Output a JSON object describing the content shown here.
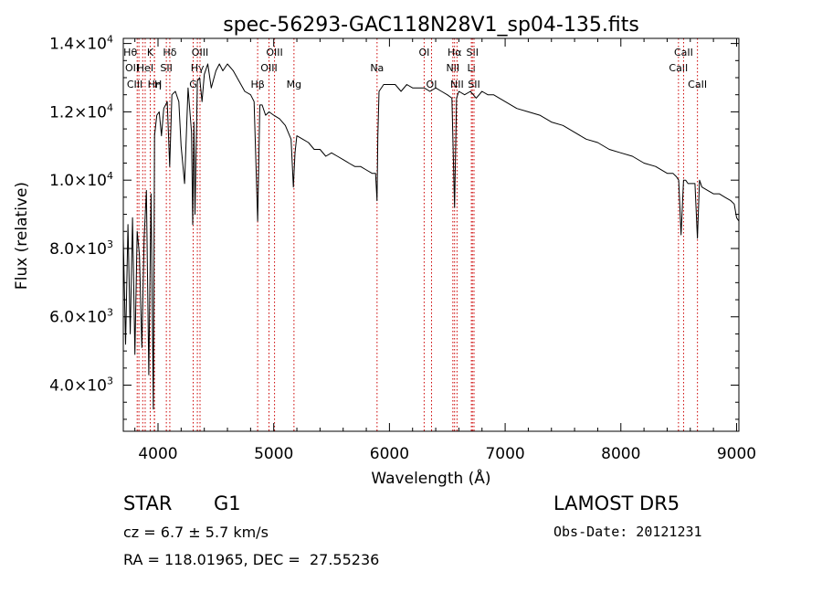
{
  "chart_data": {
    "type": "line",
    "title": "spec-56293-GAC118N28V1_sp04-135.fits",
    "xlabel": "Wavelength (Å)",
    "ylabel": "Flux (relative)",
    "xlim": [
      3700,
      9020
    ],
    "ylim": [
      2650,
      14150
    ],
    "grid": false,
    "x_ticks": [
      {
        "value": 4000,
        "label": "4000"
      },
      {
        "value": 5000,
        "label": "5000"
      },
      {
        "value": 6000,
        "label": "6000"
      },
      {
        "value": 7000,
        "label": "7000"
      },
      {
        "value": 8000,
        "label": "8000"
      },
      {
        "value": 9000,
        "label": "9000"
      }
    ],
    "y_ticks": [
      {
        "value": 4000,
        "mant": "4.0",
        "exp": "3"
      },
      {
        "value": 6000,
        "mant": "6.0",
        "exp": "3"
      },
      {
        "value": 8000,
        "mant": "8.0",
        "exp": "3"
      },
      {
        "value": 10000,
        "mant": "1.0",
        "exp": "4"
      },
      {
        "value": 12000,
        "mant": "1.2",
        "exp": "4"
      },
      {
        "value": 14000,
        "mant": "1.4",
        "exp": "4"
      }
    ],
    "y_tick_base": "×10",
    "series": [
      {
        "x": [
          3700,
          3720,
          3740,
          3760,
          3780,
          3800,
          3820,
          3840,
          3860,
          3880,
          3900,
          3920,
          3940,
          3960,
          3970,
          3990,
          4010,
          4030,
          4050,
          4080,
          4101,
          4120,
          4150,
          4180,
          4200,
          4230,
          4260,
          4290,
          4300,
          4310,
          4320,
          4340,
          4360,
          4380,
          4400,
          4430,
          4460,
          4500,
          4530,
          4560,
          4600,
          4650,
          4700,
          4750,
          4800,
          4830,
          4861,
          4880,
          4900,
          4930,
          4960,
          5000,
          5050,
          5100,
          5150,
          5170,
          5184,
          5200,
          5250,
          5300,
          5350,
          5400,
          5450,
          5500,
          5550,
          5600,
          5650,
          5700,
          5750,
          5800,
          5850,
          5880,
          5893,
          5900,
          5910,
          5950,
          6000,
          6050,
          6100,
          6150,
          6200,
          6250,
          6300,
          6350,
          6400,
          6450,
          6500,
          6540,
          6563,
          6580,
          6600,
          6650,
          6700,
          6750,
          6800,
          6850,
          6900,
          6950,
          7000,
          7100,
          7200,
          7300,
          7400,
          7500,
          7600,
          7700,
          7800,
          7900,
          8000,
          8100,
          8200,
          8300,
          8400,
          8450,
          8480,
          8500,
          8520,
          8542,
          8560,
          8580,
          8600,
          8620,
          8640,
          8662,
          8680,
          8700,
          8750,
          8800,
          8850,
          8900,
          8950,
          8980,
          9000,
          9020
        ],
        "y": [
          8300,
          5200,
          8700,
          5500,
          8900,
          4900,
          8500,
          7800,
          5100,
          8300,
          9700,
          4300,
          9600,
          3300,
          11300,
          11900,
          12000,
          11300,
          12100,
          12300,
          10400,
          12500,
          12600,
          12300,
          11000,
          9900,
          12700,
          11400,
          8700,
          11700,
          9000,
          12900,
          13000,
          12300,
          13100,
          13400,
          12700,
          13200,
          13400,
          13200,
          13400,
          13200,
          12900,
          12600,
          12500,
          12300,
          8800,
          12200,
          12200,
          11900,
          12000,
          11900,
          11800,
          11600,
          11200,
          9800,
          10800,
          11300,
          11200,
          11100,
          10900,
          10900,
          10700,
          10800,
          10700,
          10600,
          10500,
          10400,
          10400,
          10300,
          10200,
          10200,
          9400,
          11300,
          12600,
          12800,
          12800,
          12800,
          12600,
          12800,
          12700,
          12700,
          12700,
          12600,
          12700,
          12600,
          12500,
          12400,
          9200,
          12400,
          12600,
          12500,
          12600,
          12400,
          12600,
          12500,
          12500,
          12400,
          12300,
          12100,
          12000,
          11900,
          11700,
          11600,
          11400,
          11200,
          11100,
          10900,
          10800,
          10700,
          10500,
          10400,
          10200,
          10200,
          10100,
          10000,
          8400,
          10000,
          10000,
          9900,
          9900,
          9900,
          9900,
          8300,
          10000,
          9800,
          9700,
          9600,
          9600,
          9500,
          9400,
          9300,
          8900,
          8800
        ]
      }
    ],
    "line_markers": [
      {
        "wl": 3820,
        "label": "Hθ",
        "row": 0,
        "anchor": "end"
      },
      {
        "wl": 3835,
        "label": "OII",
        "row": 1,
        "anchor": "end"
      },
      {
        "wl": 3868,
        "label": "CIII",
        "row": 2,
        "anchor": "end"
      },
      {
        "wl": 3889,
        "label": "HeI",
        "row": 1,
        "anchor": "middle"
      },
      {
        "wl": 3933,
        "label": "K",
        "row": 0,
        "anchor": "middle"
      },
      {
        "wl": 3970,
        "label": "Hη",
        "row": 2,
        "anchor": "middle"
      },
      {
        "wl": 3968,
        "label": "H",
        "row": 2,
        "anchor": "start"
      },
      {
        "wl": 4072,
        "label": "SII",
        "row": 1,
        "anchor": "middle"
      },
      {
        "wl": 4102,
        "label": "Hδ",
        "row": 0,
        "anchor": "middle"
      },
      {
        "wl": 4304,
        "label": "G",
        "row": 2,
        "anchor": "middle"
      },
      {
        "wl": 4340,
        "label": "Hγ",
        "row": 1,
        "anchor": "middle"
      },
      {
        "wl": 4363,
        "label": "OIII",
        "row": 0,
        "anchor": "middle"
      },
      {
        "wl": 4861,
        "label": "Hβ",
        "row": 2,
        "anchor": "middle"
      },
      {
        "wl": 4959,
        "label": "OIII",
        "row": 1,
        "anchor": "middle"
      },
      {
        "wl": 5007,
        "label": "OIII",
        "row": 0,
        "anchor": "middle"
      },
      {
        "wl": 5175,
        "label": "Mg",
        "row": 2,
        "anchor": "middle"
      },
      {
        "wl": 5893,
        "label": "Na",
        "row": 1,
        "anchor": "middle"
      },
      {
        "wl": 6300,
        "label": "OI",
        "row": 0,
        "anchor": "middle"
      },
      {
        "wl": 6364,
        "label": "OI",
        "row": 2,
        "anchor": "middle"
      },
      {
        "wl": 6548,
        "label": "NII",
        "row": 1,
        "anchor": "middle"
      },
      {
        "wl": 6563,
        "label": "Hα",
        "row": 0,
        "anchor": "middle"
      },
      {
        "wl": 6584,
        "label": "NII",
        "row": 2,
        "anchor": "middle"
      },
      {
        "wl": 6708,
        "label": "Li",
        "row": 1,
        "anchor": "middle"
      },
      {
        "wl": 6717,
        "label": "SII",
        "row": 0,
        "anchor": "middle"
      },
      {
        "wl": 6731,
        "label": "SII",
        "row": 2,
        "anchor": "middle"
      },
      {
        "wl": 8498,
        "label": "CaII",
        "row": 1,
        "anchor": "middle"
      },
      {
        "wl": 8542,
        "label": "CaII",
        "row": 0,
        "anchor": "middle"
      },
      {
        "wl": 8662,
        "label": "CaII",
        "row": 2,
        "anchor": "middle"
      }
    ]
  },
  "info": {
    "class_label": "STAR",
    "subclass": "G1",
    "cz_text": "cz = 6.7 ± 5.7 km/s",
    "coords_text": "RA = 118.01965, DEC =  27.55236",
    "survey": "LAMOST DR5",
    "obs_date": "Obs-Date: 20121231"
  },
  "colors": {
    "line_marker": "#cc0000",
    "spectrum": "#000000",
    "axes": "#000000"
  }
}
